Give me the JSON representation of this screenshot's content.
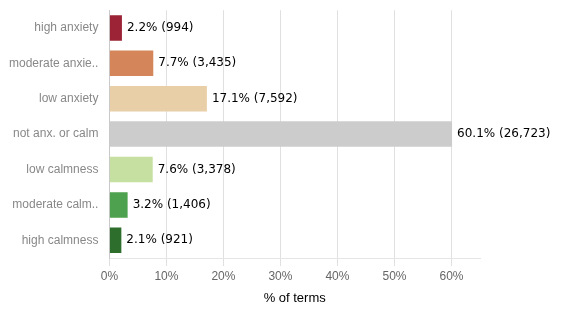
{
  "chart_data": {
    "type": "bar",
    "orientation": "horizontal",
    "categories": [
      "high anxiety",
      "moderate anxie..",
      "low anxiety",
      "not anx. or calm",
      "low calmness",
      "moderate calm..",
      "high calmness"
    ],
    "values": [
      2.2,
      7.7,
      17.1,
      60.1,
      7.6,
      3.2,
      2.1
    ],
    "value_labels": [
      "2.2% (994)",
      "7.7% (3,435)",
      "17.1% (7,592)",
      "60.1% (26,723)",
      "7.6% (3,378)",
      "3.2% (1,406)",
      "2.1% (921)"
    ],
    "data_labels": true,
    "colors": [
      "#9b2335",
      "#d4855a",
      "#e8cfa8",
      "#cccccc",
      "#c5e0a0",
      "#4ea14e",
      "#2d6e2d"
    ],
    "xlabel": "% of terms",
    "xlim": [
      0,
      65
    ],
    "xticks": [
      {
        "value": 0,
        "label": "0%"
      },
      {
        "value": 10,
        "label": "10%"
      },
      {
        "value": 20,
        "label": "20%"
      },
      {
        "value": 30,
        "label": "30%"
      },
      {
        "value": 40,
        "label": "40%"
      },
      {
        "value": 50,
        "label": "50%"
      },
      {
        "value": 60,
        "label": "60%"
      }
    ],
    "grid": true
  }
}
